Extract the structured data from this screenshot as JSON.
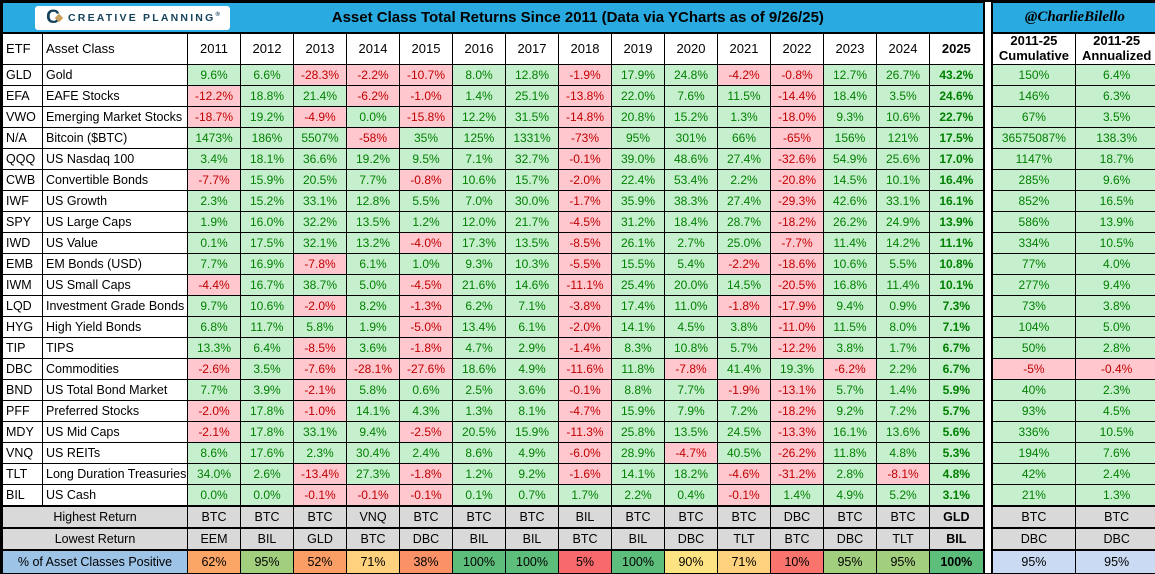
{
  "brand": {
    "logo_text": "CREATIVE PLANNING",
    "registered_mark": "®",
    "handle": "@CharlieBilello"
  },
  "colors": {
    "header_blue": "#29ABE2",
    "positive_bg": "#C6EFCE",
    "positive_text": "#008000",
    "negative_bg": "#FFC7CE",
    "negative_text": "#C00000",
    "col2025_header_bg": "#A6A6A6",
    "summary_gray": "#D9D9D9",
    "label_blue": "#9DC3E6",
    "right_blue": "#C9DAF2",
    "logo_navy": "#16435C",
    "logo_gold": "#C9A05B"
  },
  "chart_data": {
    "type": "table",
    "title": "Asset Class Total Returns Since 2011 (Data via YCharts as of 9/26/25)",
    "columns": {
      "etf": "ETF",
      "asset_class": "Asset Class",
      "years": [
        "2011",
        "2012",
        "2013",
        "2014",
        "2015",
        "2016",
        "2017",
        "2018",
        "2019",
        "2020",
        "2021",
        "2022",
        "2023",
        "2024",
        "2025"
      ],
      "cumulative_line1": "2011-25",
      "cumulative_line2": "Cumulative",
      "annualized_line1": "2011-25",
      "annualized_line2": "Annualized"
    },
    "rows": [
      {
        "etf": "GLD",
        "asset_class": "Gold",
        "returns": [
          "9.6%",
          "6.6%",
          "-28.3%",
          "-2.2%",
          "-10.7%",
          "8.0%",
          "12.8%",
          "-1.9%",
          "17.9%",
          "24.8%",
          "-4.2%",
          "-0.8%",
          "12.7%",
          "26.7%",
          "43.2%"
        ],
        "cumulative": "150%",
        "annualized": "6.4%"
      },
      {
        "etf": "EFA",
        "asset_class": "EAFE Stocks",
        "returns": [
          "-12.2%",
          "18.8%",
          "21.4%",
          "-6.2%",
          "-1.0%",
          "1.4%",
          "25.1%",
          "-13.8%",
          "22.0%",
          "7.6%",
          "11.5%",
          "-14.4%",
          "18.4%",
          "3.5%",
          "24.6%"
        ],
        "cumulative": "146%",
        "annualized": "6.3%"
      },
      {
        "etf": "VWO",
        "asset_class": "Emerging Market Stocks",
        "returns": [
          "-18.7%",
          "19.2%",
          "-4.9%",
          "0.0%",
          "-15.8%",
          "12.2%",
          "31.5%",
          "-14.8%",
          "20.8%",
          "15.2%",
          "1.3%",
          "-18.0%",
          "9.3%",
          "10.6%",
          "22.7%"
        ],
        "cumulative": "67%",
        "annualized": "3.5%"
      },
      {
        "etf": "N/A",
        "asset_class": "Bitcoin ($BTC)",
        "returns": [
          "1473%",
          "186%",
          "5507%",
          "-58%",
          "35%",
          "125%",
          "1331%",
          "-73%",
          "95%",
          "301%",
          "66%",
          "-65%",
          "156%",
          "121%",
          "17.5%"
        ],
        "cumulative": "36575087%",
        "annualized": "138.3%"
      },
      {
        "etf": "QQQ",
        "asset_class": "US Nasdaq 100",
        "returns": [
          "3.4%",
          "18.1%",
          "36.6%",
          "19.2%",
          "9.5%",
          "7.1%",
          "32.7%",
          "-0.1%",
          "39.0%",
          "48.6%",
          "27.4%",
          "-32.6%",
          "54.9%",
          "25.6%",
          "17.0%"
        ],
        "cumulative": "1147%",
        "annualized": "18.7%"
      },
      {
        "etf": "CWB",
        "asset_class": "Convertible Bonds",
        "returns": [
          "-7.7%",
          "15.9%",
          "20.5%",
          "7.7%",
          "-0.8%",
          "10.6%",
          "15.7%",
          "-2.0%",
          "22.4%",
          "53.4%",
          "2.2%",
          "-20.8%",
          "14.5%",
          "10.1%",
          "16.4%"
        ],
        "cumulative": "285%",
        "annualized": "9.6%"
      },
      {
        "etf": "IWF",
        "asset_class": "US Growth",
        "returns": [
          "2.3%",
          "15.2%",
          "33.1%",
          "12.8%",
          "5.5%",
          "7.0%",
          "30.0%",
          "-1.7%",
          "35.9%",
          "38.3%",
          "27.4%",
          "-29.3%",
          "42.6%",
          "33.1%",
          "16.1%"
        ],
        "cumulative": "852%",
        "annualized": "16.5%"
      },
      {
        "etf": "SPY",
        "asset_class": "US Large Caps",
        "returns": [
          "1.9%",
          "16.0%",
          "32.2%",
          "13.5%",
          "1.2%",
          "12.0%",
          "21.7%",
          "-4.5%",
          "31.2%",
          "18.4%",
          "28.7%",
          "-18.2%",
          "26.2%",
          "24.9%",
          "13.9%"
        ],
        "cumulative": "586%",
        "annualized": "13.9%"
      },
      {
        "etf": "IWD",
        "asset_class": "US Value",
        "returns": [
          "0.1%",
          "17.5%",
          "32.1%",
          "13.2%",
          "-4.0%",
          "17.3%",
          "13.5%",
          "-8.5%",
          "26.1%",
          "2.7%",
          "25.0%",
          "-7.7%",
          "11.4%",
          "14.2%",
          "11.1%"
        ],
        "cumulative": "334%",
        "annualized": "10.5%"
      },
      {
        "etf": "EMB",
        "asset_class": "EM Bonds (USD)",
        "returns": [
          "7.7%",
          "16.9%",
          "-7.8%",
          "6.1%",
          "1.0%",
          "9.3%",
          "10.3%",
          "-5.5%",
          "15.5%",
          "5.4%",
          "-2.2%",
          "-18.6%",
          "10.6%",
          "5.5%",
          "10.8%"
        ],
        "cumulative": "77%",
        "annualized": "4.0%"
      },
      {
        "etf": "IWM",
        "asset_class": "US Small Caps",
        "returns": [
          "-4.4%",
          "16.7%",
          "38.7%",
          "5.0%",
          "-4.5%",
          "21.6%",
          "14.6%",
          "-11.1%",
          "25.4%",
          "20.0%",
          "14.5%",
          "-20.5%",
          "16.8%",
          "11.4%",
          "10.1%"
        ],
        "cumulative": "277%",
        "annualized": "9.4%"
      },
      {
        "etf": "LQD",
        "asset_class": "Investment Grade Bonds",
        "returns": [
          "9.7%",
          "10.6%",
          "-2.0%",
          "8.2%",
          "-1.3%",
          "6.2%",
          "7.1%",
          "-3.8%",
          "17.4%",
          "11.0%",
          "-1.8%",
          "-17.9%",
          "9.4%",
          "0.9%",
          "7.3%"
        ],
        "cumulative": "73%",
        "annualized": "3.8%"
      },
      {
        "etf": "HYG",
        "asset_class": "High Yield Bonds",
        "returns": [
          "6.8%",
          "11.7%",
          "5.8%",
          "1.9%",
          "-5.0%",
          "13.4%",
          "6.1%",
          "-2.0%",
          "14.1%",
          "4.5%",
          "3.8%",
          "-11.0%",
          "11.5%",
          "8.0%",
          "7.1%"
        ],
        "cumulative": "104%",
        "annualized": "5.0%"
      },
      {
        "etf": "TIP",
        "asset_class": "TIPS",
        "returns": [
          "13.3%",
          "6.4%",
          "-8.5%",
          "3.6%",
          "-1.8%",
          "4.7%",
          "2.9%",
          "-1.4%",
          "8.3%",
          "10.8%",
          "5.7%",
          "-12.2%",
          "3.8%",
          "1.7%",
          "6.7%"
        ],
        "cumulative": "50%",
        "annualized": "2.8%"
      },
      {
        "etf": "DBC",
        "asset_class": "Commodities",
        "returns": [
          "-2.6%",
          "3.5%",
          "-7.6%",
          "-28.1%",
          "-27.6%",
          "18.6%",
          "4.9%",
          "-11.6%",
          "11.8%",
          "-7.8%",
          "41.4%",
          "19.3%",
          "-6.2%",
          "2.2%",
          "6.7%"
        ],
        "cumulative": "-5%",
        "annualized": "-0.4%"
      },
      {
        "etf": "BND",
        "asset_class": "US Total Bond Market",
        "returns": [
          "7.7%",
          "3.9%",
          "-2.1%",
          "5.8%",
          "0.6%",
          "2.5%",
          "3.6%",
          "-0.1%",
          "8.8%",
          "7.7%",
          "-1.9%",
          "-13.1%",
          "5.7%",
          "1.4%",
          "5.9%"
        ],
        "cumulative": "40%",
        "annualized": "2.3%"
      },
      {
        "etf": "PFF",
        "asset_class": "Preferred Stocks",
        "returns": [
          "-2.0%",
          "17.8%",
          "-1.0%",
          "14.1%",
          "4.3%",
          "1.3%",
          "8.1%",
          "-4.7%",
          "15.9%",
          "7.9%",
          "7.2%",
          "-18.2%",
          "9.2%",
          "7.2%",
          "5.7%"
        ],
        "cumulative": "93%",
        "annualized": "4.5%"
      },
      {
        "etf": "MDY",
        "asset_class": "US Mid Caps",
        "returns": [
          "-2.1%",
          "17.8%",
          "33.1%",
          "9.4%",
          "-2.5%",
          "20.5%",
          "15.9%",
          "-11.3%",
          "25.8%",
          "13.5%",
          "24.5%",
          "-13.3%",
          "16.1%",
          "13.6%",
          "5.6%"
        ],
        "cumulative": "336%",
        "annualized": "10.5%"
      },
      {
        "etf": "VNQ",
        "asset_class": "US REITs",
        "returns": [
          "8.6%",
          "17.6%",
          "2.3%",
          "30.4%",
          "2.4%",
          "8.6%",
          "4.9%",
          "-6.0%",
          "28.9%",
          "-4.7%",
          "40.5%",
          "-26.2%",
          "11.8%",
          "4.8%",
          "5.3%"
        ],
        "cumulative": "194%",
        "annualized": "7.6%"
      },
      {
        "etf": "TLT",
        "asset_class": "Long Duration Treasuries",
        "returns": [
          "34.0%",
          "2.6%",
          "-13.4%",
          "27.3%",
          "-1.8%",
          "1.2%",
          "9.2%",
          "-1.6%",
          "14.1%",
          "18.2%",
          "-4.6%",
          "-31.2%",
          "2.8%",
          "-8.1%",
          "4.8%"
        ],
        "cumulative": "42%",
        "annualized": "2.4%"
      },
      {
        "etf": "BIL",
        "asset_class": "US Cash",
        "returns": [
          "0.0%",
          "0.0%",
          "-0.1%",
          "-0.1%",
          "-0.1%",
          "0.1%",
          "0.7%",
          "1.7%",
          "2.2%",
          "0.4%",
          "-0.1%",
          "1.4%",
          "4.9%",
          "5.2%",
          "3.1%"
        ],
        "cumulative": "21%",
        "annualized": "1.3%"
      }
    ],
    "summary": {
      "highest_return": {
        "label": "Highest Return",
        "values": [
          "BTC",
          "BTC",
          "BTC",
          "VNQ",
          "BTC",
          "BTC",
          "BTC",
          "BIL",
          "BTC",
          "BTC",
          "BTC",
          "DBC",
          "BTC",
          "BTC",
          "GLD"
        ],
        "cumulative": "BTC",
        "annualized": "BTC"
      },
      "lowest_return": {
        "label": "Lowest Return",
        "values": [
          "EEM",
          "BIL",
          "GLD",
          "BTC",
          "DBC",
          "BIL",
          "BIL",
          "BTC",
          "BIL",
          "DBC",
          "TLT",
          "BTC",
          "DBC",
          "TLT",
          "BIL"
        ],
        "cumulative": "DBC",
        "annualized": "DBC"
      },
      "pct_positive": {
        "label": "% of Asset Classes Positive",
        "values": [
          {
            "value": "62%",
            "bg": "#FBA567"
          },
          {
            "value": "95%",
            "bg": "#A2CF7E"
          },
          {
            "value": "52%",
            "bg": "#FB9E66"
          },
          {
            "value": "71%",
            "bg": "#FDD17D"
          },
          {
            "value": "38%",
            "bg": "#FA9167"
          },
          {
            "value": "100%",
            "bg": "#5DBD7B"
          },
          {
            "value": "100%",
            "bg": "#5DBD7B"
          },
          {
            "value": "5%",
            "bg": "#F8696B"
          },
          {
            "value": "100%",
            "bg": "#5DBD7B"
          },
          {
            "value": "90%",
            "bg": "#FEE382"
          },
          {
            "value": "71%",
            "bg": "#FDD17D"
          },
          {
            "value": "10%",
            "bg": "#F8746D"
          },
          {
            "value": "95%",
            "bg": "#A2CF7E"
          },
          {
            "value": "95%",
            "bg": "#A2CF7E"
          },
          {
            "value": "100%",
            "bg": "#5DBD7B"
          }
        ],
        "cumulative": "95%",
        "annualized": "95%"
      }
    }
  }
}
